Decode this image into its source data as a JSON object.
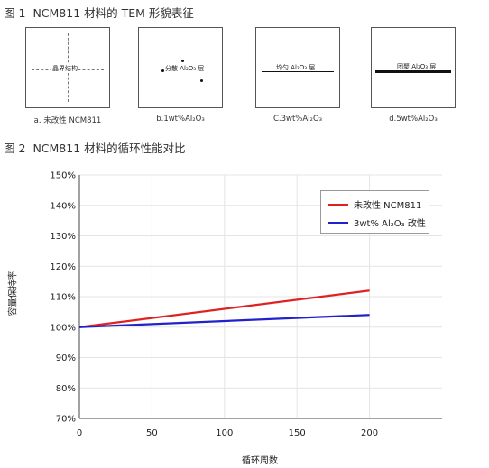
{
  "figure1": {
    "number": "图 1",
    "title": "NCM811 材料的 TEM 形貌表征",
    "panels": [
      {
        "caption": "a. 未改性 NCM811",
        "label": "晶界结构"
      },
      {
        "caption": "b.1wt%Al₂O₃",
        "label": "分散 Al₂O₃ 层"
      },
      {
        "caption": "C.3wt%Al₂O₃",
        "label": "均匀 Al₂O₃ 层"
      },
      {
        "caption": "d.5wt%Al₂O₃",
        "label": "团聚 Al₂O₃ 层"
      }
    ]
  },
  "figure2": {
    "number": "图 2",
    "title": "NCM811 材料的循环性能对比"
  },
  "chart_data": {
    "type": "line",
    "xlabel": "循环周数",
    "ylabel": "容量保持率",
    "xlim": [
      0,
      250
    ],
    "ylim": [
      70,
      150
    ],
    "xticks": [
      0,
      50,
      100,
      150,
      200
    ],
    "yticks": [
      70,
      80,
      90,
      100,
      110,
      120,
      130,
      140,
      150
    ],
    "ytick_suffix": "%",
    "grid": true,
    "legend_position": "top-right",
    "series": [
      {
        "name": "未改性 NCM811",
        "color": "#dd2222",
        "x": [
          0,
          200
        ],
        "y": [
          100,
          112
        ]
      },
      {
        "name": "3wt% Al₂O₃ 改性",
        "color": "#2222cc",
        "x": [
          0,
          200
        ],
        "y": [
          100,
          104
        ]
      }
    ]
  }
}
